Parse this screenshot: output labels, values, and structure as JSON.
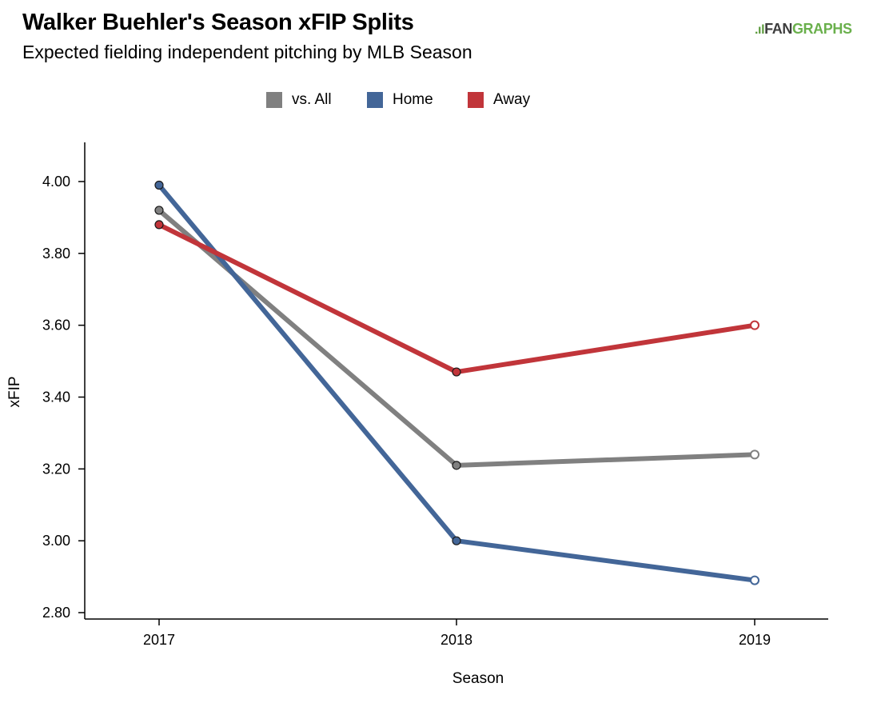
{
  "header": {
    "title": "Walker Buehler's Season xFIP Splits",
    "subtitle": "Expected fielding independent pitching by MLB Season",
    "brand_mark": ".ıl",
    "brand_fan": "FAN",
    "brand_graphs": "GRAPHS"
  },
  "chart_data": {
    "type": "line",
    "title": "Walker Buehler's Season xFIP Splits",
    "subtitle": "Expected fielding independent pitching by MLB Season",
    "xlabel": "Season",
    "ylabel": "xFIP",
    "categories": [
      "2017",
      "2018",
      "2019"
    ],
    "ylim": [
      2.8,
      4.1
    ],
    "yticks": [
      2.8,
      3.0,
      3.2,
      3.4,
      3.6,
      3.8,
      4.0
    ],
    "ytick_labels": [
      "2.80",
      "3.00",
      "3.20",
      "3.40",
      "3.60",
      "3.80",
      "4.00"
    ],
    "grid": false,
    "legend_position": "top-center",
    "series": [
      {
        "name": "vs. All",
        "color": "#808080",
        "values": [
          3.92,
          3.21,
          3.24
        ]
      },
      {
        "name": "Home",
        "color": "#436698",
        "values": [
          3.99,
          3.0,
          2.89
        ]
      },
      {
        "name": "Away",
        "color": "#c1353a",
        "values": [
          3.88,
          3.47,
          3.6
        ]
      }
    ],
    "open_marker_categories": [
      "2019"
    ]
  }
}
